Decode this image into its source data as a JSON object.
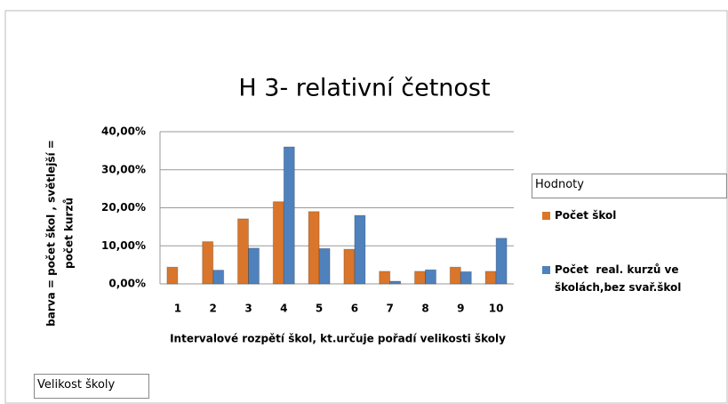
{
  "chart_data": {
    "type": "bar",
    "title": "H 3- relativní četnost",
    "x_label": "Intervalové rozpětí škol, kt.určuje pořadí velikosti školy",
    "y_label": [
      "barva = počet škol , světlejší =",
      "počet kurzů"
    ],
    "legend_title": "Hodnoty",
    "filter_button": "Velikost školy",
    "categories": [
      "1",
      "2",
      "3",
      "4",
      "5",
      "6",
      "7",
      "8",
      "9",
      "10"
    ],
    "series": [
      {
        "name": "Počet škol",
        "color": "#d9762b",
        "values": [
          4.4,
          11.1,
          17.1,
          21.6,
          19,
          9.1,
          3.3,
          3.3,
          4.4,
          3.3
        ]
      },
      {
        "name": "Počet  real. kurzů ve školách,bez svař.škol",
        "color": "#4f81bd",
        "values": [
          0,
          3.6,
          9.4,
          36,
          9.3,
          18,
          0.7,
          3.7,
          3.2,
          12
        ]
      }
    ],
    "ylim": [
      0,
      40
    ],
    "yticks": [
      {
        "value": 0,
        "label": "0,00%"
      },
      {
        "value": 10,
        "label": "10,00%"
      },
      {
        "value": 20,
        "label": "20,00%"
      },
      {
        "value": 30,
        "label": "30,00%"
      },
      {
        "value": 40,
        "label": "40,00%"
      }
    ],
    "grid": true
  }
}
